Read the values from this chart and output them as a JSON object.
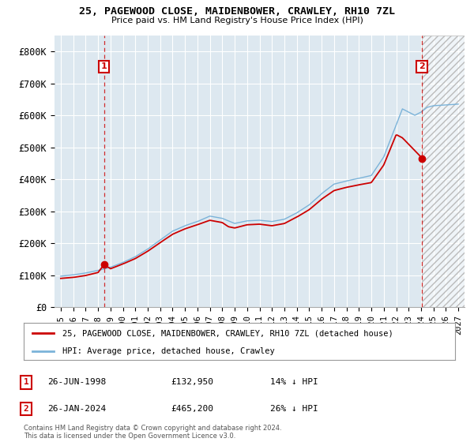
{
  "title1": "25, PAGEWOOD CLOSE, MAIDENBOWER, CRAWLEY, RH10 7ZL",
  "title2": "Price paid vs. HM Land Registry's House Price Index (HPI)",
  "legend_label1": "25, PAGEWOOD CLOSE, MAIDENBOWER, CRAWLEY, RH10 7ZL (detached house)",
  "legend_label2": "HPI: Average price, detached house, Crawley",
  "sale1_date": "26-JUN-1998",
  "sale1_price": "£132,950",
  "sale1_pct": "14% ↓ HPI",
  "sale2_date": "26-JAN-2024",
  "sale2_price": "£465,200",
  "sale2_pct": "26% ↓ HPI",
  "footer": "Contains HM Land Registry data © Crown copyright and database right 2024.\nThis data is licensed under the Open Government Licence v3.0.",
  "price_color": "#cc0000",
  "hpi_color": "#7bb3d9",
  "sale1_x": 1998.49,
  "sale1_y": 132950,
  "sale2_x": 2024.07,
  "sale2_y": 465200,
  "vline1_x": 1998.49,
  "vline2_x": 2024.07,
  "ylim": [
    0,
    850000
  ],
  "xlim": [
    1994.5,
    2027.5
  ],
  "ylabel_ticks": [
    0,
    100000,
    200000,
    300000,
    400000,
    500000,
    600000,
    700000,
    800000
  ],
  "xtick_years": [
    1995,
    1996,
    1997,
    1998,
    1999,
    2000,
    2001,
    2002,
    2003,
    2004,
    2005,
    2006,
    2007,
    2008,
    2009,
    2010,
    2011,
    2012,
    2013,
    2014,
    2015,
    2016,
    2017,
    2018,
    2019,
    2020,
    2021,
    2022,
    2023,
    2024,
    2025,
    2026,
    2027
  ],
  "plot_bg_color": "#dde8f0",
  "background_color": "#ffffff",
  "grid_color": "#ffffff",
  "future_hatch_color": "#bbbbbb"
}
